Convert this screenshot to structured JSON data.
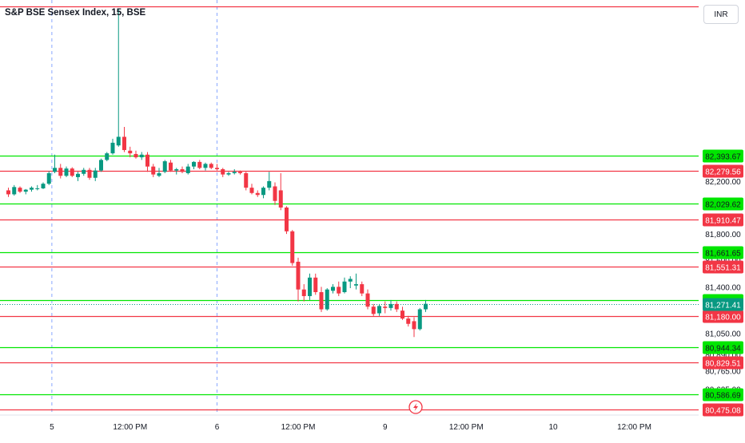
{
  "header": {
    "title": "S&P BSE Sensex Index, 15, BSE",
    "currency": "INR"
  },
  "chart_data": {
    "type": "candlestick",
    "symbol": "S&P BSE Sensex Index",
    "interval": "15",
    "exchange": "BSE",
    "y_range": [
      80430,
      83570
    ],
    "price_ticks": [
      82200,
      82029.62,
      81800,
      81600,
      81400,
      81200,
      81050,
      80890,
      80765,
      80625
    ],
    "price_tick_labels": [
      "82,200.00",
      "82,029.62",
      "81,800.00",
      "81,600.00",
      "81,400.00",
      "81,200.00",
      "81,050.00",
      "80,890.00",
      "80,765.00",
      "80,625.00"
    ],
    "x_ticks": [
      {
        "label": "12:00 PM",
        "index": -6
      },
      {
        "label": "5",
        "index": 7.5
      },
      {
        "label": "12:00 PM",
        "index": 21
      },
      {
        "label": "6",
        "index": 36
      },
      {
        "label": "12:00 PM",
        "index": 50
      },
      {
        "label": "9",
        "index": 65
      },
      {
        "label": "12:00 PM",
        "index": 79
      },
      {
        "label": "10",
        "index": 94
      },
      {
        "label": "12:00 PM",
        "index": 108
      }
    ],
    "session_breaks": [
      7.5,
      36
    ],
    "levels": [
      {
        "price": 83520,
        "color": "#f23645",
        "label": ""
      },
      {
        "price": 82393.67,
        "color": "#00e600",
        "label": "82,393.67"
      },
      {
        "price": 82279.56,
        "color": "#f23645",
        "label": "82,279.56"
      },
      {
        "price": 82029.62,
        "color": "#00e600",
        "label": "82,029.62"
      },
      {
        "price": 81910.47,
        "color": "#f23645",
        "label": "81,910.47"
      },
      {
        "price": 81661.65,
        "color": "#00e600",
        "label": "81,661.65"
      },
      {
        "price": 81551.31,
        "color": "#f23645",
        "label": "81,551.31"
      },
      {
        "price": 81298.08,
        "color": "#00e600",
        "label": "81,298.08"
      },
      {
        "price": 81180.0,
        "color": "#f23645",
        "label": "81,180.00"
      },
      {
        "price": 80944.34,
        "color": "#00e600",
        "label": "80,944.34"
      },
      {
        "price": 80829.51,
        "color": "#f23645",
        "label": "80,829.51"
      },
      {
        "price": 80586.69,
        "color": "#00e600",
        "label": "80,586.69"
      },
      {
        "price": 80475.08,
        "color": "#f23645",
        "label": "80,475.08"
      }
    ],
    "last_price": {
      "price": 81271.41,
      "label": "81,271.41",
      "color": "#089981"
    },
    "candles": [
      [
        82130,
        82150,
        82080,
        82100
      ],
      [
        82100,
        82170,
        82090,
        82155
      ],
      [
        82150,
        82160,
        82110,
        82120
      ],
      [
        82120,
        82140,
        82100,
        82135
      ],
      [
        82135,
        82160,
        82120,
        82150
      ],
      [
        82140,
        82170,
        82130,
        82145
      ],
      [
        82145,
        82190,
        82140,
        82180
      ],
      [
        82180,
        82275,
        82170,
        82260
      ],
      [
        82270,
        82400,
        82260,
        82300
      ],
      [
        82300,
        82330,
        82220,
        82240
      ],
      [
        82240,
        82310,
        82230,
        82295
      ],
      [
        82295,
        82305,
        82230,
        82240
      ],
      [
        82230,
        82270,
        82200,
        82255
      ],
      [
        82255,
        82300,
        82240,
        82285
      ],
      [
        82285,
        82300,
        82210,
        82225
      ],
      [
        82225,
        82300,
        82200,
        82280
      ],
      [
        82280,
        82370,
        82270,
        82360
      ],
      [
        82360,
        82420,
        82350,
        82410
      ],
      [
        82410,
        82520,
        82400,
        82490
      ],
      [
        82470,
        83500,
        82460,
        82535
      ],
      [
        82535,
        82610,
        82420,
        82435
      ],
      [
        82430,
        82460,
        82380,
        82410
      ],
      [
        82405,
        82430,
        82370,
        82380
      ],
      [
        82380,
        82420,
        82360,
        82400
      ],
      [
        82400,
        82420,
        82270,
        82310
      ],
      [
        82310,
        82330,
        82230,
        82250
      ],
      [
        82240,
        82300,
        82230,
        82260
      ],
      [
        82270,
        82360,
        82260,
        82350
      ],
      [
        82340,
        82360,
        82270,
        82280
      ],
      [
        82280,
        82300,
        82250,
        82290
      ],
      [
        82290,
        82310,
        82260,
        82270
      ],
      [
        82260,
        82330,
        82250,
        82310
      ],
      [
        82310,
        82350,
        82290,
        82345
      ],
      [
        82345,
        82360,
        82290,
        82300
      ],
      [
        82300,
        82340,
        82280,
        82330
      ],
      [
        82330,
        82340,
        82290,
        82300
      ],
      [
        82300,
        82330,
        82280,
        82290
      ],
      [
        82290,
        82300,
        82230,
        82250
      ],
      [
        82250,
        82270,
        82240,
        82260
      ],
      [
        82260,
        82290,
        82250,
        82270
      ],
      [
        82270,
        82280,
        82250,
        82260
      ],
      [
        82260,
        82270,
        82130,
        82150
      ],
      [
        82150,
        82180,
        82100,
        82110
      ],
      [
        82110,
        82130,
        82080,
        82095
      ],
      [
        82095,
        82160,
        82070,
        82150
      ],
      [
        82150,
        82270,
        82130,
        82200
      ],
      [
        82160,
        82190,
        82020,
        82050
      ],
      [
        82130,
        82260,
        81980,
        82000
      ],
      [
        82000,
        82010,
        81800,
        81820
      ],
      [
        81820,
        81830,
        81560,
        81580
      ],
      [
        81590,
        81620,
        81290,
        81380
      ],
      [
        81380,
        81420,
        81290,
        81330
      ],
      [
        81330,
        81500,
        81300,
        81470
      ],
      [
        81470,
        81500,
        81340,
        81360
      ],
      [
        81360,
        81400,
        81210,
        81230
      ],
      [
        81230,
        81390,
        81220,
        81380
      ],
      [
        81370,
        81420,
        81350,
        81400
      ],
      [
        81400,
        81440,
        81330,
        81350
      ],
      [
        81360,
        81470,
        81350,
        81440
      ],
      [
        81440,
        81480,
        81390,
        81460
      ],
      [
        81410,
        81500,
        81380,
        81420
      ],
      [
        81420,
        81440,
        81330,
        81350
      ],
      [
        81350,
        81380,
        81230,
        81250
      ],
      [
        81250,
        81270,
        81180,
        81195
      ],
      [
        81200,
        81270,
        81180,
        81255
      ],
      [
        81250,
        81290,
        81200,
        81240
      ],
      [
        81240,
        81300,
        81220,
        81270
      ],
      [
        81270,
        81290,
        81210,
        81230
      ],
      [
        81220,
        81250,
        81150,
        81160
      ],
      [
        81160,
        81180,
        81100,
        81120
      ],
      [
        81140,
        81170,
        81020,
        81080
      ],
      [
        81080,
        81240,
        81070,
        81230
      ],
      [
        81230,
        81300,
        81210,
        81271.41
      ]
    ]
  }
}
